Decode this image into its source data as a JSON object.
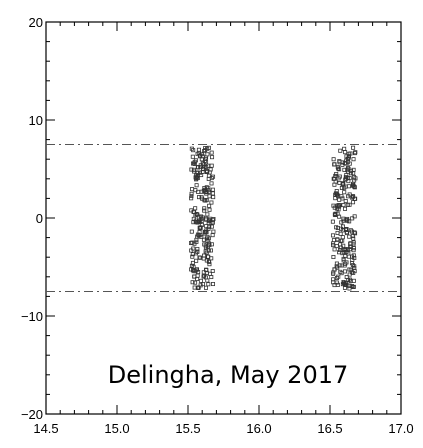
{
  "chart_data": {
    "type": "scatter",
    "title": "",
    "xlabel": "",
    "ylabel": "",
    "xlim": [
      14.5,
      17.0
    ],
    "ylim": [
      -20,
      20
    ],
    "x_ticks": [
      14.5,
      15.0,
      15.5,
      16.0,
      16.5,
      17.0
    ],
    "x_tick_labels": [
      "14.5",
      "15.0",
      "15.5",
      "16.0",
      "16.5",
      "17.0"
    ],
    "y_ticks": [
      -20,
      -10,
      0,
      10,
      20
    ],
    "y_tick_labels": [
      "−20",
      "−10",
      "0",
      "10",
      "20"
    ],
    "grid": false,
    "reference_lines": [
      7.5,
      -7.5
    ],
    "annotation": "Delingha, May 2017",
    "marker": "open-square",
    "clusters": [
      {
        "x_range": [
          15.52,
          15.68
        ],
        "y_range": [
          -7.2,
          7.2
        ],
        "count": 230
      },
      {
        "x_range": [
          16.52,
          16.68
        ],
        "y_range": [
          -7.2,
          7.2
        ],
        "count": 230
      }
    ]
  }
}
